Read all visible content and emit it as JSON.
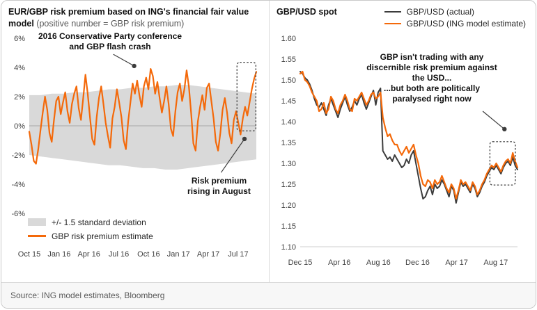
{
  "page": {
    "source": "Source: ING model estimates, Bloomberg"
  },
  "colors": {
    "orange": "#f4690a",
    "dark": "#3c3c3c",
    "band": "#d9d9d9"
  },
  "left_panel": {
    "title_bold": "EUR/GBP risk premium based on ING's financial fair value model",
    "title_note": "(positive number = GBP risk premium)",
    "annotations": {
      "flash_crash": "2016 Conservative Party conference and GBP flash crash",
      "august": "Risk premium rising in August"
    },
    "legend": [
      {
        "label": "+/- 1.5 standard deviation",
        "color": "#d9d9d9"
      },
      {
        "label": "GBP risk premium estimate",
        "color": "#f4690a"
      }
    ]
  },
  "right_panel": {
    "title": "GBP/USD spot",
    "annotation_lines": [
      "GBP isn't trading with any discernible risk premium against the USD...",
      "...but both are politically paralysed right now"
    ],
    "legend": [
      {
        "label": "GBP/USD (actual)",
        "color": "#3c3c3c"
      },
      {
        "label": "GBP/USD (ING model estimate)",
        "color": "#f4690a"
      }
    ]
  },
  "chart_data": [
    {
      "type": "line",
      "title": "EUR/GBP risk premium based on ING's financial fair value model (positive number = GBP risk premium)",
      "xlabel": "",
      "ylabel": "",
      "ylim": [
        -6,
        6
      ],
      "y_ticks": [
        6,
        4,
        2,
        0,
        -2,
        -4,
        -6
      ],
      "y_format": "percent",
      "x_tick_labels": [
        "Oct 15",
        "Jan 16",
        "Apr 16",
        "Jul 16",
        "Oct 16",
        "Jan 17",
        "Apr 17",
        "Jul 17"
      ],
      "grid": "zero-line-only",
      "legend_position": "bottom-left",
      "band": {
        "name": "+/- 1.5 standard deviation",
        "color": "#d9d9d9",
        "upper": [
          2.1,
          2.1,
          2.2,
          2.2,
          2.3,
          2.3,
          2.4,
          2.5,
          2.5,
          2.6,
          2.6,
          2.7,
          2.7,
          2.8,
          2.8,
          2.7,
          2.6,
          2.5,
          2.4,
          2.3,
          2.2
        ],
        "lower": [
          -2.0,
          -2.1,
          -2.2,
          -2.3,
          -2.4,
          -2.5,
          -2.6,
          -2.7,
          -2.7,
          -2.8,
          -2.9,
          -2.9,
          -3.0,
          -3.0,
          -2.9,
          -2.8,
          -2.7,
          -2.6,
          -2.5,
          -2.4,
          -2.3
        ]
      },
      "series": [
        {
          "name": "GBP risk premium estimate",
          "color": "#f4690a",
          "values": [
            -0.4,
            -1.3,
            -2.4,
            -2.6,
            -1.6,
            -0.3,
            0.9,
            2.0,
            1.1,
            -0.5,
            -1.1,
            0.4,
            1.7,
            2.0,
            0.8,
            1.6,
            2.3,
            1.0,
            0.2,
            1.5,
            2.2,
            2.7,
            1.2,
            0.4,
            1.9,
            3.5,
            2.2,
            0.6,
            -0.9,
            -1.3,
            0.6,
            1.9,
            2.7,
            1.5,
            0.2,
            -0.7,
            -1.5,
            0.5,
            1.3,
            2.5,
            1.6,
            0.6,
            -1.0,
            -1.6,
            0.3,
            1.6,
            2.9,
            2.2,
            3.1,
            2.1,
            1.3,
            2.7,
            3.3,
            2.5,
            3.9,
            3.4,
            2.2,
            3.0,
            1.9,
            0.9,
            1.7,
            2.7,
            1.5,
            -0.2,
            -0.7,
            1.0,
            2.3,
            2.9,
            1.7,
            2.5,
            3.8,
            2.7,
            0.9,
            -1.2,
            -1.7,
            0.3,
            1.3,
            2.1,
            1.1,
            2.6,
            2.9,
            1.7,
            0.5,
            -1.1,
            -1.7,
            -0.5,
            1.1,
            1.9,
            0.9,
            -0.5,
            -1.2,
            0.4,
            1.0,
            0.2,
            -0.6,
            0.5,
            1.3,
            0.7,
            1.6,
            2.5,
            3.2,
            3.7
          ]
        }
      ]
    },
    {
      "type": "line",
      "title": "GBP/USD spot",
      "xlabel": "",
      "ylabel": "",
      "ylim": [
        1.1,
        1.6
      ],
      "y_ticks": [
        1.6,
        1.55,
        1.5,
        1.45,
        1.4,
        1.35,
        1.3,
        1.25,
        1.2,
        1.15,
        1.1
      ],
      "y_format": "2dp",
      "x_tick_labels": [
        "Dec 15",
        "Apr 16",
        "Aug 16",
        "Dec 16",
        "Apr 17",
        "Aug 17"
      ],
      "grid": "none",
      "legend_position": "top-right",
      "series": [
        {
          "name": "GBP/USD (actual)",
          "color": "#3c3c3c",
          "values": [
            1.52,
            1.515,
            1.505,
            1.5,
            1.49,
            1.475,
            1.455,
            1.44,
            1.435,
            1.445,
            1.43,
            1.415,
            1.44,
            1.455,
            1.44,
            1.425,
            1.41,
            1.43,
            1.445,
            1.46,
            1.44,
            1.425,
            1.435,
            1.45,
            1.44,
            1.455,
            1.465,
            1.445,
            1.43,
            1.445,
            1.46,
            1.475,
            1.44,
            1.47,
            1.48,
            1.33,
            1.32,
            1.31,
            1.315,
            1.305,
            1.32,
            1.31,
            1.3,
            1.29,
            1.295,
            1.31,
            1.3,
            1.32,
            1.33,
            1.3,
            1.27,
            1.24,
            1.215,
            1.22,
            1.235,
            1.245,
            1.225,
            1.25,
            1.24,
            1.245,
            1.26,
            1.25,
            1.235,
            1.22,
            1.245,
            1.235,
            1.205,
            1.23,
            1.255,
            1.245,
            1.25,
            1.24,
            1.23,
            1.25,
            1.24,
            1.22,
            1.23,
            1.245,
            1.255,
            1.27,
            1.28,
            1.29,
            1.285,
            1.295,
            1.285,
            1.275,
            1.29,
            1.3,
            1.305,
            1.295,
            1.315,
            1.295,
            1.285
          ]
        },
        {
          "name": "GBP/USD (ING model estimate)",
          "color": "#f4690a",
          "values": [
            1.515,
            1.52,
            1.5,
            1.495,
            1.485,
            1.47,
            1.46,
            1.45,
            1.425,
            1.43,
            1.445,
            1.42,
            1.43,
            1.46,
            1.45,
            1.43,
            1.42,
            1.44,
            1.45,
            1.465,
            1.45,
            1.43,
            1.425,
            1.455,
            1.45,
            1.46,
            1.47,
            1.455,
            1.44,
            1.45,
            1.465,
            1.47,
            1.455,
            1.46,
            1.47,
            1.41,
            1.385,
            1.365,
            1.37,
            1.355,
            1.345,
            1.345,
            1.33,
            1.32,
            1.33,
            1.34,
            1.325,
            1.335,
            1.345,
            1.32,
            1.3,
            1.27,
            1.25,
            1.245,
            1.26,
            1.255,
            1.24,
            1.26,
            1.25,
            1.255,
            1.27,
            1.255,
            1.24,
            1.23,
            1.25,
            1.24,
            1.215,
            1.235,
            1.26,
            1.25,
            1.255,
            1.245,
            1.235,
            1.255,
            1.245,
            1.225,
            1.235,
            1.25,
            1.26,
            1.275,
            1.285,
            1.295,
            1.29,
            1.3,
            1.29,
            1.28,
            1.295,
            1.305,
            1.31,
            1.3,
            1.325,
            1.305,
            1.29
          ]
        }
      ]
    }
  ]
}
